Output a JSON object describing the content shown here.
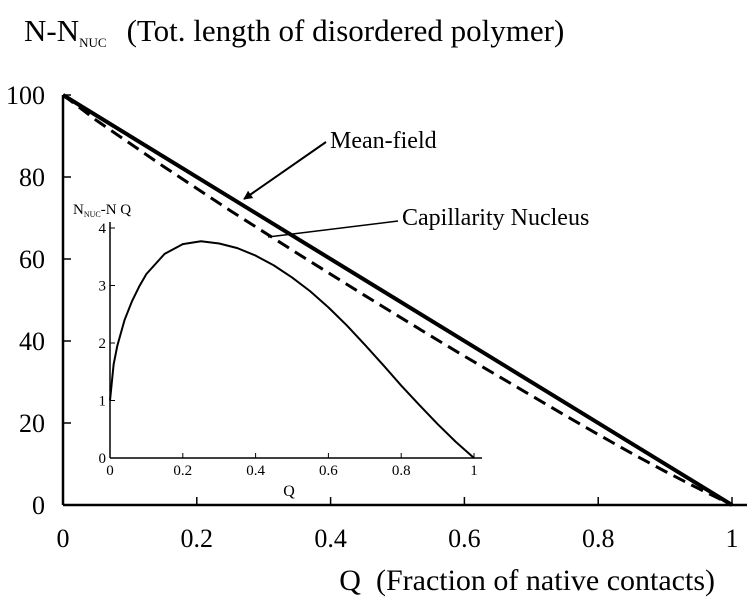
{
  "chart_data": [
    {
      "type": "line",
      "title": {
        "main": "N-N",
        "sub": "NUC",
        "rest": "(Tot. length of disordered polymer)"
      },
      "xlabel": "Q  (Fraction of native contacts)",
      "ylabel": "",
      "xlim": [
        0,
        1
      ],
      "ylim": [
        0,
        100
      ],
      "xticks": [
        0,
        0.2,
        0.4,
        0.6,
        0.8,
        1
      ],
      "xtick_labels": [
        "0",
        "0.2",
        "0.4",
        "0.6",
        "0.8",
        "1"
      ],
      "yticks": [
        0,
        20,
        40,
        60,
        80,
        100
      ],
      "ytick_labels": [
        "0",
        "20",
        "40",
        "60",
        "80",
        "100"
      ],
      "series": [
        {
          "name": "Mean-field",
          "style": "solid",
          "color": "#000000",
          "x": [
            0,
            1
          ],
          "y": [
            100,
            0
          ]
        },
        {
          "name": "Capillarity Nucleus",
          "style": "dashed",
          "color": "#000000",
          "x": [
            0,
            0.05,
            0.1,
            0.15,
            0.2,
            0.25,
            0.3,
            0.35,
            0.4,
            0.45,
            0.5,
            0.55,
            0.6,
            0.65,
            0.7,
            0.75,
            0.8,
            0.85,
            0.9,
            0.95,
            1.0
          ],
          "y": [
            100,
            93.8,
            88.2,
            82.6,
            77.2,
            71.8,
            66.6,
            61.4,
            56.3,
            51.2,
            46.2,
            41.2,
            36.3,
            31.5,
            26.7,
            21.9,
            17.2,
            12.6,
            8.2,
            4.0,
            0
          ]
        }
      ],
      "annotations": [
        {
          "text": "Mean-field",
          "arrow_to": [
            0.27,
            76.5
          ]
        },
        {
          "text": "Capillarity Nucleus",
          "arrow_to": [
            0.31,
            65.5
          ]
        }
      ]
    },
    {
      "type": "line",
      "title": "",
      "ylabel": {
        "main": "N",
        "sub": "NUC",
        "rest": "-N Q"
      },
      "xlabel": "Q",
      "xlim": [
        0,
        1
      ],
      "ylim": [
        0,
        4
      ],
      "xticks": [
        0,
        0.2,
        0.4,
        0.6,
        0.8,
        1
      ],
      "xtick_labels": [
        "0",
        "0.2",
        "0.4",
        "0.6",
        "0.8",
        "1"
      ],
      "yticks": [
        0,
        1,
        2,
        3,
        4
      ],
      "ytick_labels": [
        "0",
        "1",
        "2",
        "3",
        "4"
      ],
      "series": [
        {
          "style": "solid",
          "color": "#000000",
          "x": [
            0,
            0.01,
            0.02,
            0.04,
            0.06,
            0.08,
            0.1,
            0.15,
            0.2,
            0.25,
            0.3,
            0.35,
            0.4,
            0.45,
            0.5,
            0.55,
            0.6,
            0.65,
            0.7,
            0.75,
            0.8,
            0.85,
            0.9,
            0.95,
            1.0
          ],
          "y": [
            1.0,
            1.63,
            1.95,
            2.4,
            2.72,
            2.98,
            3.2,
            3.55,
            3.72,
            3.77,
            3.73,
            3.65,
            3.52,
            3.35,
            3.14,
            2.9,
            2.62,
            2.31,
            1.97,
            1.62,
            1.26,
            0.92,
            0.59,
            0.28,
            0.0
          ]
        }
      ]
    }
  ]
}
